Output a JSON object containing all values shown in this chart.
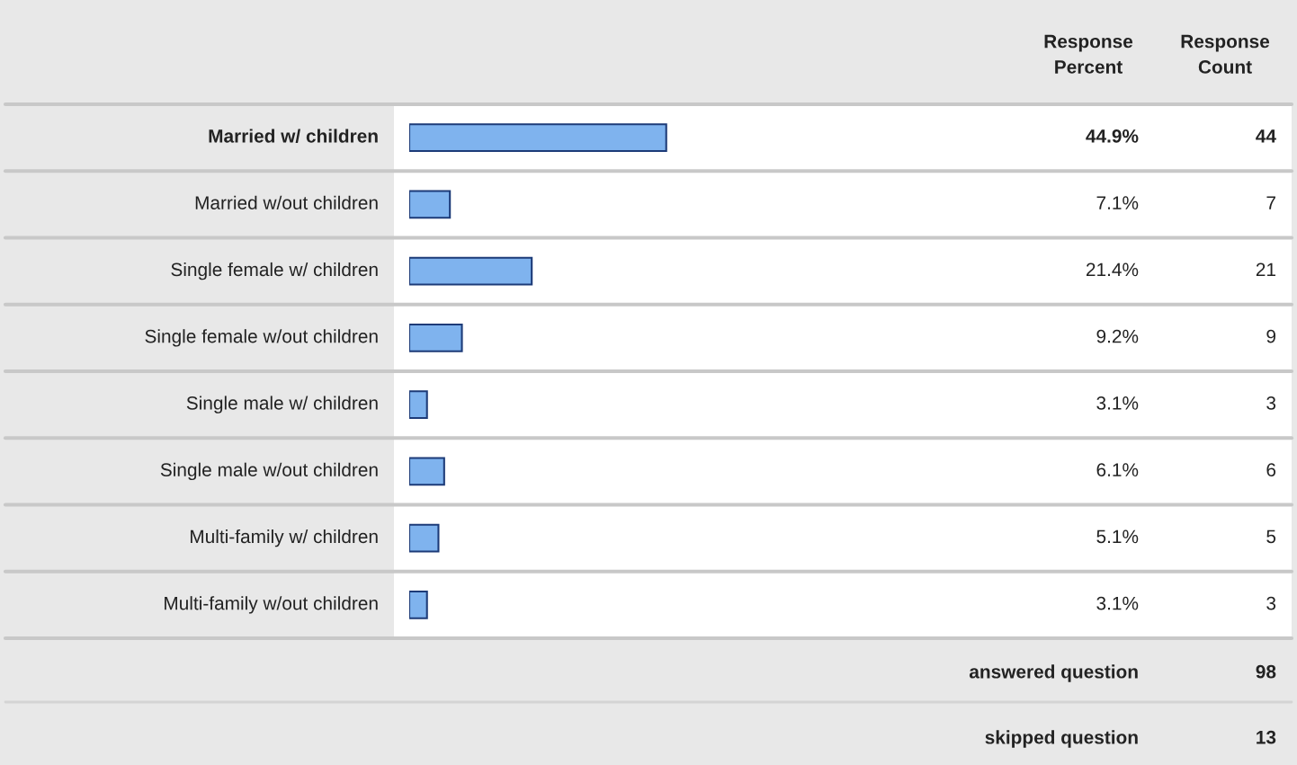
{
  "chart_data": {
    "type": "bar",
    "orientation": "horizontal",
    "categories": [
      "Married w/ children",
      "Married w/out children",
      "Single female w/ children",
      "Single female w/out children",
      "Single male w/ children",
      "Single male w/out children",
      "Multi-family w/ children",
      "Multi-family w/out children"
    ],
    "values": [
      44.9,
      7.1,
      21.4,
      9.2,
      3.1,
      6.1,
      5.1,
      3.1
    ],
    "value_labels": [
      "44.9%",
      "7.1%",
      "21.4%",
      "9.2%",
      "3.1%",
      "6.1%",
      "5.1%",
      "3.1%"
    ],
    "color": "#7fb3ee",
    "annotations": [
      "Response Percent",
      "Response Count",
      "44",
      "7",
      "21",
      "9",
      "3",
      "6",
      "5",
      "3",
      "answered question",
      "98",
      "skipped question",
      "13"
    ]
  }
}
